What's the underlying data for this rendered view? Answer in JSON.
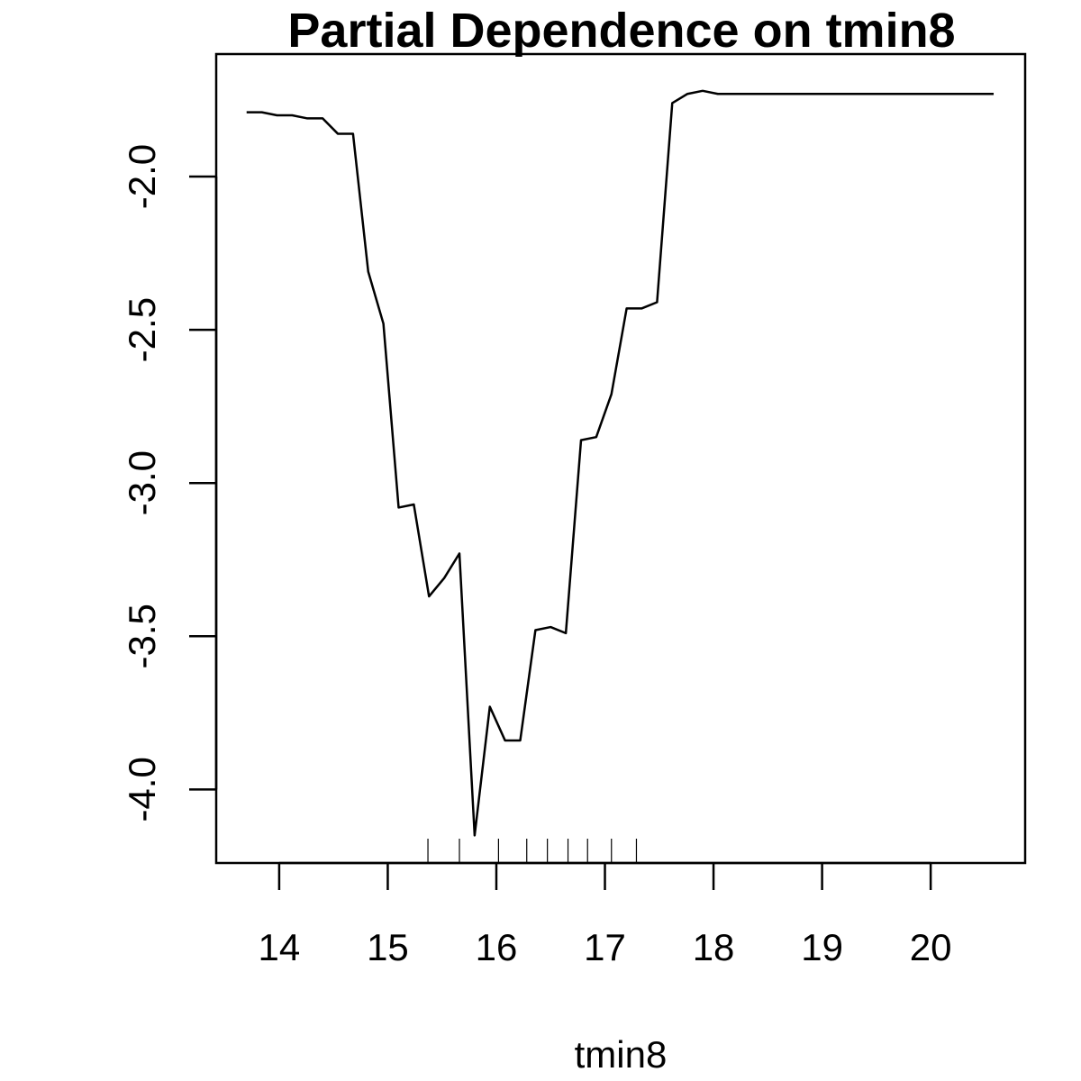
{
  "chart_data": {
    "type": "line",
    "title": "Partial Dependence on tmin8",
    "xlabel": "tmin8",
    "ylabel": "",
    "xlim": [
      13.42,
      20.87
    ],
    "ylim": [
      -4.24,
      -1.6
    ],
    "xticks": [
      14,
      15,
      16,
      17,
      18,
      19,
      20
    ],
    "xtick_labels": [
      "14",
      "15",
      "16",
      "17",
      "18",
      "19",
      "20"
    ],
    "yticks": [
      -2.0,
      -2.5,
      -3.0,
      -3.5,
      -4.0
    ],
    "ytick_labels": [
      "-2.0",
      "-2.5",
      "-3.0",
      "-3.5",
      "-4.0"
    ],
    "grid": false,
    "legend": "none",
    "line_color": "#000000",
    "series": [
      {
        "x": [
          13.7,
          13.84,
          13.98,
          14.12,
          14.26,
          14.4,
          14.54,
          14.68,
          14.82,
          14.96,
          15.1,
          15.24,
          15.38,
          15.52,
          15.66,
          15.8,
          15.94,
          16.08,
          16.22,
          16.36,
          16.5,
          16.64,
          16.78,
          16.92,
          17.06,
          17.2,
          17.34,
          17.48,
          17.62,
          17.76,
          17.9,
          18.04,
          18.2,
          18.6,
          19.0,
          19.4,
          19.8,
          20.2,
          20.58
        ],
        "y": [
          -1.79,
          -1.79,
          -1.8,
          -1.8,
          -1.81,
          -1.81,
          -1.86,
          -1.86,
          -2.31,
          -2.48,
          -3.08,
          -3.07,
          -3.37,
          -3.31,
          -3.23,
          -4.15,
          -3.73,
          -3.84,
          -3.84,
          -3.48,
          -3.47,
          -3.49,
          -2.86,
          -2.85,
          -2.71,
          -2.43,
          -2.43,
          -2.41,
          -1.76,
          -1.73,
          -1.72,
          -1.73,
          -1.73,
          -1.73,
          -1.73,
          -1.73,
          -1.73,
          -1.73,
          -1.73
        ]
      }
    ],
    "rug": [
      15.37,
      15.66,
      16.02,
      16.28,
      16.47,
      16.66,
      16.84,
      17.06,
      17.29
    ]
  }
}
